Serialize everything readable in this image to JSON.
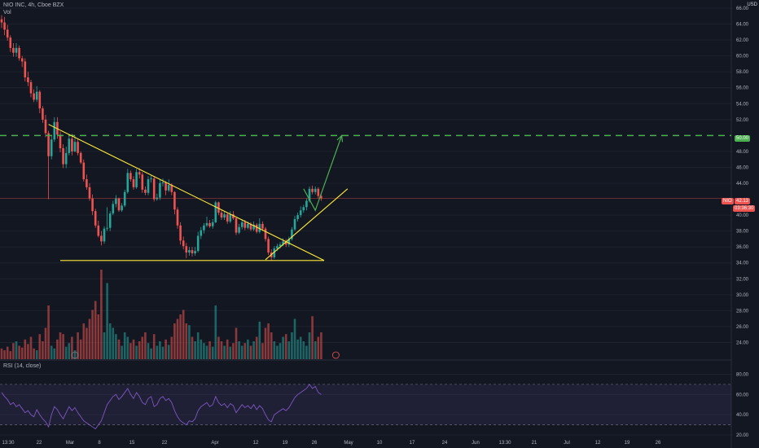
{
  "header": {
    "symbol_line": "NIO INC, 4h, Cboe BZX",
    "volume_label": "Vol",
    "currency": "USD"
  },
  "rsi": {
    "label": "RSI (14, close)"
  },
  "tags": {
    "target_price": "50.00",
    "last_symbol": "NIO",
    "last_price": "42.13",
    "countdown": "03:36:30"
  },
  "colors": {
    "up": "#26a69a",
    "down": "#ef5350",
    "trend": "#ffeb3b",
    "target": "#4caf50",
    "rsi_line": "#7e57c2",
    "background": "#131722"
  },
  "chart_data": {
    "type": "candlestick",
    "price_axis": {
      "range": [
        22.0,
        66.0
      ],
      "ticks": [
        "66.00",
        "64.00",
        "62.00",
        "60.00",
        "58.00",
        "56.00",
        "54.00",
        "52.00",
        "48.00",
        "46.00",
        "44.00",
        "40.00",
        "38.00",
        "36.00",
        "34.00",
        "32.00",
        "30.00",
        "28.00",
        "26.00",
        "24.00"
      ]
    },
    "rsi_axis": {
      "range": [
        20,
        86
      ],
      "ticks": [
        "80.00",
        "60.00",
        "40.00",
        "20.00"
      ],
      "bands": [
        30,
        70
      ]
    },
    "time_axis": [
      "13:30",
      "22",
      "Mar",
      "8",
      "15",
      "22",
      "Apr",
      "12",
      "19",
      "26",
      "May",
      "10",
      "17",
      "24",
      "Jun",
      "13:30",
      "21",
      "Jul",
      "12",
      "19",
      "26"
    ],
    "candles": [
      [
        64.6,
        64.2,
        65.1,
        63.5
      ],
      [
        64.2,
        63.3,
        64.9,
        62.6
      ],
      [
        63.3,
        62.3,
        63.9,
        61.9
      ],
      [
        62.3,
        61.0,
        62.6,
        60.5
      ],
      [
        61.0,
        60.4,
        61.6,
        59.9
      ],
      [
        60.4,
        61.0,
        61.6,
        59.9
      ],
      [
        61.0,
        59.7,
        61.3,
        59.4
      ],
      [
        59.7,
        59.3,
        60.0,
        58.6
      ],
      [
        59.3,
        57.3,
        59.7,
        56.8
      ],
      [
        57.3,
        56.7,
        58.0,
        56.2
      ],
      [
        56.7,
        55.3,
        57.0,
        54.8
      ],
      [
        55.3,
        54.5,
        55.8,
        54.2
      ],
      [
        54.5,
        55.5,
        56.2,
        54.2
      ],
      [
        55.5,
        53.4,
        55.7,
        52.8
      ],
      [
        53.4,
        52.0,
        53.7,
        51.6
      ],
      [
        52.0,
        50.3,
        52.6,
        49.8
      ],
      [
        50.3,
        47.4,
        50.6,
        42.0
      ],
      [
        47.4,
        49.5,
        50.0,
        47.0
      ],
      [
        49.5,
        51.7,
        52.3,
        49.2
      ],
      [
        51.7,
        50.1,
        52.3,
        49.6
      ],
      [
        50.1,
        48.4,
        50.5,
        47.9
      ],
      [
        48.4,
        46.4,
        48.9,
        45.9
      ],
      [
        46.4,
        47.8,
        48.6,
        45.9
      ],
      [
        47.8,
        49.6,
        50.2,
        47.5
      ],
      [
        49.6,
        48.0,
        50.2,
        47.5
      ],
      [
        48.0,
        49.2,
        50.0,
        47.9
      ],
      [
        49.2,
        47.8,
        49.5,
        47.5
      ],
      [
        47.8,
        46.6,
        48.0,
        46.4
      ],
      [
        46.6,
        44.5,
        47.0,
        44.2
      ],
      [
        44.5,
        43.5,
        45.1,
        43.2
      ],
      [
        43.5,
        42.1,
        44.0,
        41.8
      ],
      [
        42.1,
        40.5,
        42.6,
        40.0
      ],
      [
        40.5,
        38.7,
        40.8,
        38.4
      ],
      [
        38.7,
        37.4,
        39.3,
        37.2
      ],
      [
        37.4,
        36.7,
        38.0,
        36.2
      ],
      [
        36.7,
        38.3,
        38.6,
        36.4
      ],
      [
        38.3,
        38.4,
        41.0,
        38.0
      ],
      [
        38.4,
        40.2,
        40.5,
        38.0
      ],
      [
        40.2,
        41.4,
        41.8,
        40.0
      ],
      [
        41.4,
        42.1,
        42.5,
        41.0
      ],
      [
        42.1,
        40.6,
        42.2,
        40.4
      ],
      [
        40.6,
        41.2,
        41.5,
        40.4
      ],
      [
        41.2,
        42.9,
        43.2,
        41.0
      ],
      [
        42.9,
        45.3,
        45.8,
        42.7
      ],
      [
        45.3,
        44.5,
        45.6,
        44.2
      ],
      [
        44.5,
        43.5,
        44.9,
        43.2
      ],
      [
        43.5,
        45.4,
        45.8,
        43.3
      ],
      [
        45.4,
        45.1,
        45.9,
        44.6
      ],
      [
        45.1,
        43.2,
        45.4,
        42.8
      ],
      [
        43.2,
        42.8,
        43.6,
        42.5
      ],
      [
        42.8,
        44.5,
        44.9,
        42.5
      ],
      [
        44.5,
        44.6,
        45.0,
        44.1
      ],
      [
        44.6,
        42.0,
        44.9,
        41.7
      ],
      [
        42.0,
        42.2,
        42.7,
        41.8
      ],
      [
        42.2,
        44.0,
        44.5,
        41.9
      ],
      [
        44.0,
        44.1,
        44.6,
        43.6
      ],
      [
        44.1,
        43.1,
        44.3,
        42.5
      ],
      [
        43.1,
        43.8,
        44.5,
        42.9
      ],
      [
        43.8,
        42.9,
        44.0,
        42.5
      ],
      [
        42.9,
        40.7,
        43.0,
        40.1
      ],
      [
        40.7,
        38.7,
        41.0,
        38.3
      ],
      [
        38.7,
        36.8,
        39.1,
        36.3
      ],
      [
        36.8,
        36.1,
        37.3,
        35.7
      ],
      [
        36.1,
        35.3,
        36.5,
        34.6
      ],
      [
        35.3,
        35.6,
        36.0,
        34.9
      ],
      [
        35.6,
        35.2,
        36.0,
        34.8
      ],
      [
        35.2,
        35.5,
        36.0,
        34.9
      ],
      [
        35.5,
        37.4,
        37.9,
        35.3
      ],
      [
        37.4,
        38.1,
        38.5,
        37.0
      ],
      [
        38.1,
        38.7,
        39.0,
        37.7
      ],
      [
        38.7,
        39.0,
        39.8,
        38.5
      ],
      [
        39.0,
        38.6,
        39.4,
        38.4
      ],
      [
        38.6,
        39.1,
        39.5,
        38.3
      ],
      [
        39.1,
        41.6,
        41.8,
        39.0
      ],
      [
        41.6,
        40.3,
        41.7,
        40.0
      ],
      [
        40.3,
        39.7,
        40.6,
        39.4
      ],
      [
        39.7,
        40.1,
        40.4,
        39.4
      ],
      [
        40.1,
        39.2,
        40.3,
        38.9
      ],
      [
        39.2,
        40.1,
        40.5,
        39.0
      ],
      [
        40.1,
        39.6,
        40.5,
        39.4
      ],
      [
        39.6,
        37.8,
        39.8,
        37.5
      ],
      [
        37.8,
        38.5,
        38.9,
        37.6
      ],
      [
        38.5,
        39.1,
        39.5,
        38.2
      ],
      [
        39.1,
        38.4,
        39.4,
        38.1
      ],
      [
        38.4,
        38.9,
        39.2,
        38.2
      ],
      [
        38.9,
        38.2,
        39.1,
        38.0
      ],
      [
        38.2,
        38.8,
        39.2,
        38.0
      ],
      [
        38.8,
        37.9,
        39.0,
        37.7
      ],
      [
        37.9,
        38.9,
        39.6,
        37.7
      ],
      [
        38.9,
        38.3,
        39.2,
        38.0
      ],
      [
        38.3,
        37.0,
        38.5,
        36.7
      ],
      [
        37.0,
        35.3,
        37.3,
        35.0
      ],
      [
        35.3,
        34.7,
        35.7,
        34.3
      ],
      [
        34.7,
        35.8,
        36.1,
        34.5
      ],
      [
        35.8,
        36.1,
        36.4,
        35.5
      ],
      [
        36.1,
        36.3,
        36.6,
        35.8
      ],
      [
        36.3,
        36.7,
        37.1,
        36.1
      ],
      [
        36.7,
        36.3,
        37.0,
        36.0
      ],
      [
        36.3,
        37.0,
        37.3,
        36.0
      ],
      [
        37.0,
        38.2,
        38.5,
        36.8
      ],
      [
        38.2,
        39.5,
        39.9,
        38.0
      ],
      [
        39.5,
        40.0,
        40.3,
        39.2
      ],
      [
        40.0,
        40.6,
        41.1,
        39.7
      ],
      [
        40.6,
        41.0,
        41.3,
        40.3
      ],
      [
        41.0,
        41.8,
        42.1,
        40.6
      ],
      [
        41.8,
        43.3,
        43.6,
        41.6
      ],
      [
        43.3,
        42.9,
        43.7,
        42.6
      ],
      [
        42.9,
        43.3,
        43.6,
        42.6
      ],
      [
        43.3,
        42.4,
        43.5,
        42.1
      ],
      [
        42.4,
        42.1,
        42.7,
        41.8
      ]
    ],
    "volume": [
      0.12,
      0.1,
      0.14,
      0.09,
      0.18,
      0.2,
      0.15,
      0.13,
      0.22,
      0.17,
      0.25,
      0.12,
      0.1,
      0.28,
      0.2,
      0.35,
      0.6,
      0.15,
      0.12,
      0.22,
      0.3,
      0.28,
      0.14,
      0.18,
      0.25,
      0.1,
      0.3,
      0.22,
      0.4,
      0.35,
      0.45,
      0.55,
      0.65,
      0.5,
      1.0,
      0.3,
      0.85,
      0.4,
      0.35,
      0.28,
      0.22,
      0.15,
      0.3,
      0.25,
      0.18,
      0.22,
      0.15,
      0.2,
      0.25,
      0.3,
      0.18,
      0.12,
      0.28,
      0.15,
      0.2,
      0.14,
      0.22,
      0.16,
      0.25,
      0.4,
      0.45,
      0.5,
      0.55,
      0.4,
      0.38,
      0.25,
      0.2,
      0.3,
      0.22,
      0.18,
      0.15,
      0.2,
      0.14,
      0.6,
      0.25,
      0.2,
      0.15,
      0.22,
      0.14,
      0.18,
      0.35,
      0.2,
      0.15,
      0.18,
      0.22,
      0.15,
      0.2,
      0.25,
      0.42,
      0.18,
      0.35,
      0.4,
      0.3,
      0.2,
      0.15,
      0.18,
      0.25,
      0.28,
      0.2,
      0.3,
      0.45,
      0.22,
      0.25,
      0.2,
      0.15,
      0.3,
      0.48,
      0.2,
      0.25,
      0.3
    ],
    "rsi": [
      62,
      58,
      55,
      50,
      52,
      48,
      50,
      46,
      42,
      44,
      40,
      38,
      45,
      40,
      36,
      33,
      28,
      40,
      48,
      45,
      40,
      36,
      42,
      48,
      44,
      47,
      42,
      38,
      34,
      32,
      30,
      28,
      26,
      30,
      34,
      42,
      50,
      54,
      58,
      60,
      55,
      58,
      62,
      66,
      60,
      56,
      62,
      58,
      52,
      50,
      56,
      58,
      48,
      50,
      56,
      58,
      54,
      56,
      52,
      44,
      38,
      34,
      32,
      30,
      34,
      33,
      36,
      44,
      48,
      50,
      52,
      48,
      50,
      58,
      52,
      49,
      51,
      47,
      51,
      49,
      42,
      46,
      50,
      47,
      49,
      46,
      50,
      45,
      49,
      46,
      40,
      35,
      33,
      40,
      42,
      44,
      46,
      44,
      47,
      52,
      57,
      60,
      62,
      64,
      66,
      70,
      66,
      68,
      62,
      60
    ],
    "annotations": {
      "descending_trendline": [
        [
          16,
          51.4
        ],
        [
          110,
          34.3
        ]
      ],
      "horizontal_support": [
        [
          20,
          34.3
        ],
        [
          110,
          34.3
        ]
      ],
      "ascending_trendline": [
        [
          90,
          34.4
        ],
        [
          118,
          43.3
        ]
      ],
      "target_level": 50.0,
      "projection_path": [
        [
          103,
          43.3
        ],
        [
          107,
          40.6
        ],
        [
          116,
          50.0
        ]
      ]
    }
  }
}
